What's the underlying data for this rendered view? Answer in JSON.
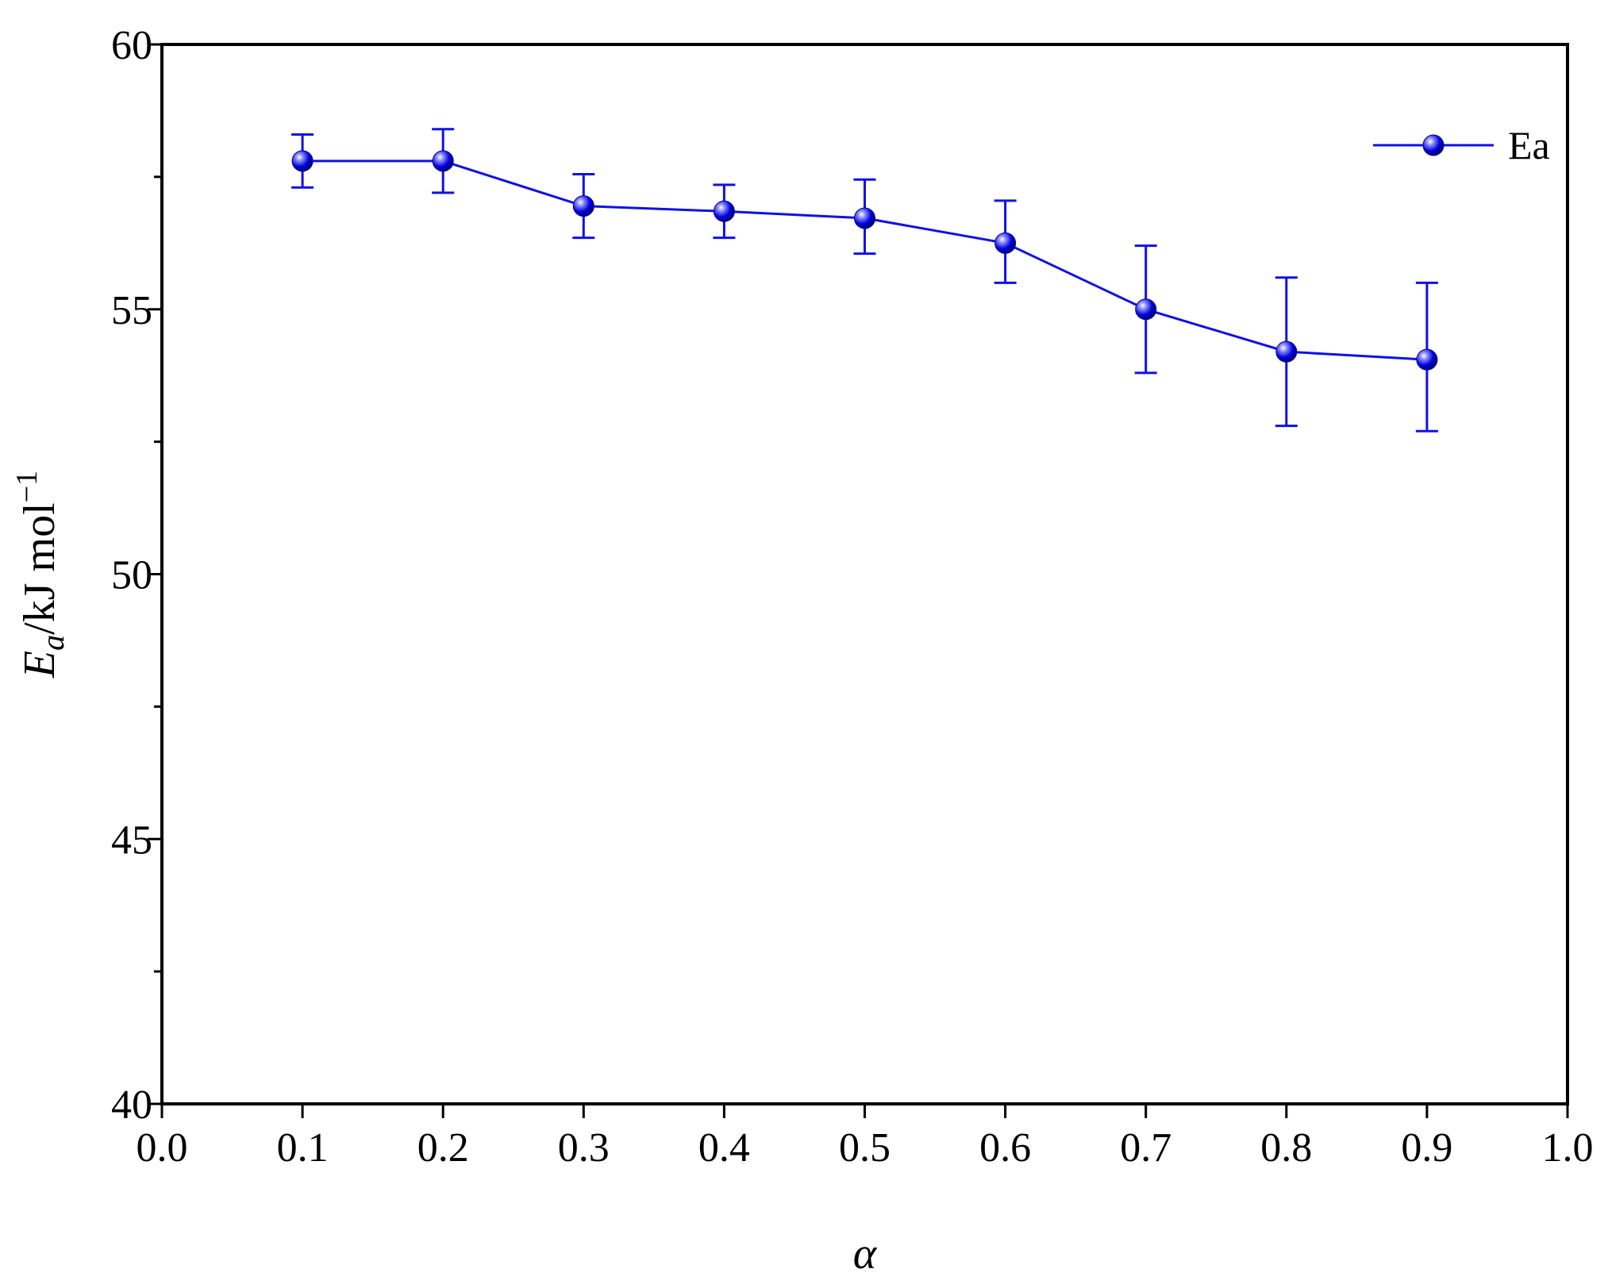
{
  "chart_data": {
    "type": "line",
    "x": [
      0.1,
      0.2,
      0.3,
      0.4,
      0.5,
      0.6,
      0.7,
      0.8,
      0.9
    ],
    "series": [
      {
        "name": "Ea",
        "values": [
          57.8,
          57.8,
          56.95,
          56.85,
          56.72,
          56.25,
          55.0,
          54.2,
          54.05
        ],
        "error_low": [
          57.3,
          57.2,
          56.35,
          56.35,
          56.05,
          55.5,
          53.8,
          52.8,
          52.7
        ],
        "error_high": [
          58.3,
          58.4,
          57.55,
          57.35,
          57.45,
          57.05,
          56.2,
          55.6,
          55.5
        ]
      }
    ],
    "xlabel": "α",
    "ylabel_main": "E",
    "ylabel_sub": "a",
    "ylabel_unit": "/kJ mol",
    "ylabel_sup": "−1",
    "xlim": [
      0.0,
      1.0
    ],
    "ylim": [
      40,
      60
    ],
    "xticks": [
      "0.0",
      "0.1",
      "0.2",
      "0.3",
      "0.4",
      "0.5",
      "0.6",
      "0.7",
      "0.8",
      "0.9",
      "1.0"
    ],
    "yticks": [
      "40",
      "45",
      "50",
      "55",
      "60"
    ],
    "grid": false,
    "legend_position": "top-right",
    "colors": {
      "series": "#1010e8",
      "marker": "#0000dd",
      "axis": "#000000"
    }
  }
}
